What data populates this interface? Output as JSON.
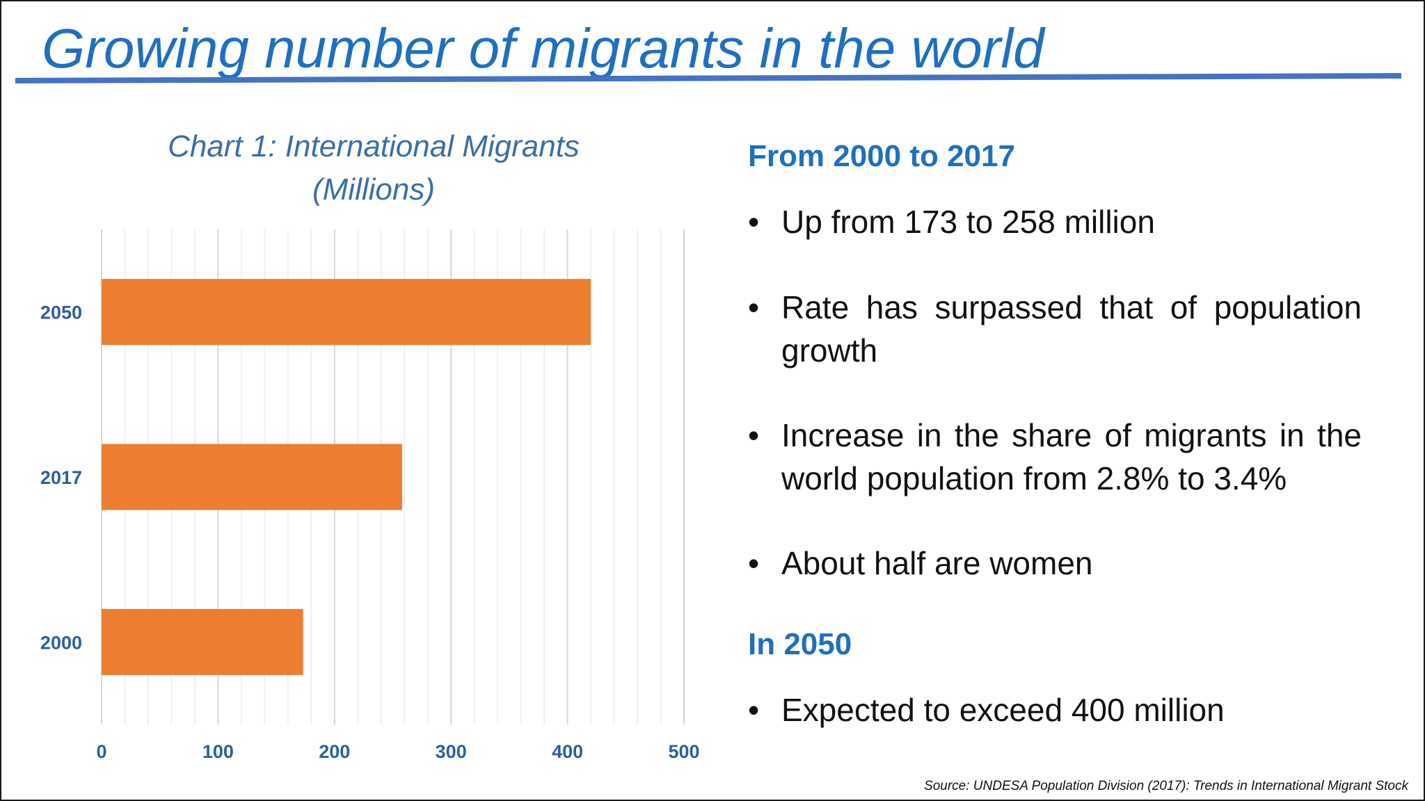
{
  "slide": {
    "title": "Growing number of migrants in the world",
    "source": "Source: UNDESA Population Division (2017): Trends in International Migrant Stock"
  },
  "chart_title": {
    "line1": "Chart 1: International Migrants",
    "line2": "(Millions)"
  },
  "chart_data": {
    "type": "bar",
    "orientation": "horizontal",
    "title": "Chart 1: International Migrants (Millions)",
    "categories": [
      "2050",
      "2017",
      "2000"
    ],
    "values": [
      420,
      258,
      173
    ],
    "xlim": [
      0,
      500
    ],
    "xticks": [
      "0",
      "100",
      "200",
      "300",
      "400",
      "500"
    ],
    "xlabel": "",
    "ylabel": "",
    "grid": true,
    "bar_color": "#ed7d31"
  },
  "right": {
    "heading1": "From 2000 to 2017",
    "bullets1": [
      "Up from 173 to 258 million",
      "Rate has surpassed that of population growth",
      "Increase in the share of migrants in the world population from 2.8% to 3.4%",
      "About half are women"
    ],
    "heading2": "In 2050",
    "bullets2": [
      "Expected to exceed 400 million"
    ],
    "bullet_glyph": "•"
  },
  "colors": {
    "title": "#1f6fbf",
    "rule": "#4472c4",
    "bar": "#ed7d31",
    "tick": "#2e5f99"
  }
}
